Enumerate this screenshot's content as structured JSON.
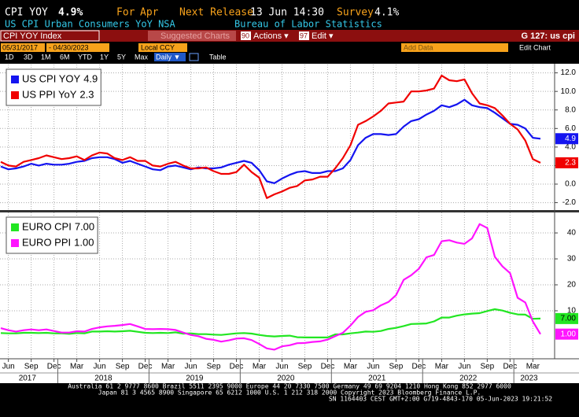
{
  "header": {
    "ticker": "CPI YOY",
    "value": "4.9%",
    "for_label": "For",
    "period": "Apr",
    "next_label": "Next Release",
    "next_date": "13 Jun 14:30",
    "survey_label": "Survey",
    "survey": "4.1%",
    "description": "US CPI Urban Consumers YoY NSA",
    "source": "Bureau of Labor Statistics"
  },
  "toolbar": {
    "index": "CPI YOY Index",
    "suggested": "Suggested Charts",
    "actions_num": "90",
    "actions": "Actions ▾",
    "edit_num": "97",
    "edit": "Edit ▾",
    "command": "G 127: us cpi"
  },
  "controls": {
    "start": "05/31/2017",
    "end": "- 04/30/2023",
    "ccy": "Local CCY",
    "ranges": [
      "1D",
      "3D",
      "1M",
      "6M",
      "YTD",
      "1Y",
      "5Y",
      "Max"
    ],
    "freq": "Daily ▼",
    "table": "Table",
    "add_data": "Add Data",
    "edit_chart": "Edit Chart"
  },
  "xaxis": {
    "ticks": [
      {
        "value": "2017-06",
        "label": "Jun"
      },
      {
        "value": "2017-09",
        "label": "Sep"
      },
      {
        "value": "2017-12",
        "label": "Dec"
      },
      {
        "value": "2018-03",
        "label": "Mar"
      },
      {
        "value": "2018-06",
        "label": "Jun"
      },
      {
        "value": "2018-09",
        "label": "Sep"
      },
      {
        "value": "2018-12",
        "label": "Dec"
      },
      {
        "value": "2019-03",
        "label": "Mar"
      },
      {
        "value": "2019-06",
        "label": "Jun"
      },
      {
        "value": "2019-09",
        "label": "Sep"
      },
      {
        "value": "2019-12",
        "label": "Dec"
      },
      {
        "value": "2020-03",
        "label": "Mar"
      },
      {
        "value": "2020-06",
        "label": "Jun"
      },
      {
        "value": "2020-09",
        "label": "Sep"
      },
      {
        "value": "2020-12",
        "label": "Dec"
      },
      {
        "value": "2021-03",
        "label": "Mar"
      },
      {
        "value": "2021-06",
        "label": "Jun"
      },
      {
        "value": "2021-09",
        "label": "Sep"
      },
      {
        "value": "2021-12",
        "label": "Dec"
      },
      {
        "value": "2022-03",
        "label": "Mar"
      },
      {
        "value": "2022-06",
        "label": "Jun"
      },
      {
        "value": "2022-09",
        "label": "Sep"
      },
      {
        "value": "2022-12",
        "label": "Dec"
      },
      {
        "value": "2023-03",
        "label": "Mar"
      }
    ],
    "years": [
      2017,
      2018,
      2019,
      2020,
      2021,
      2022,
      2023
    ]
  },
  "chart_data": [
    {
      "type": "line",
      "grid": true,
      "legend": "upper left",
      "x": [
        "2017-05",
        "2017-06",
        "2017-07",
        "2017-08",
        "2017-09",
        "2017-10",
        "2017-11",
        "2017-12",
        "2018-01",
        "2018-02",
        "2018-03",
        "2018-04",
        "2018-05",
        "2018-06",
        "2018-07",
        "2018-08",
        "2018-09",
        "2018-10",
        "2018-11",
        "2018-12",
        "2019-01",
        "2019-02",
        "2019-03",
        "2019-04",
        "2019-05",
        "2019-06",
        "2019-07",
        "2019-08",
        "2019-09",
        "2019-10",
        "2019-11",
        "2019-12",
        "2020-01",
        "2020-02",
        "2020-03",
        "2020-04",
        "2020-05",
        "2020-06",
        "2020-07",
        "2020-08",
        "2020-09",
        "2020-10",
        "2020-11",
        "2020-12",
        "2021-01",
        "2021-02",
        "2021-03",
        "2021-04",
        "2021-05",
        "2021-06",
        "2021-07",
        "2021-08",
        "2021-09",
        "2021-10",
        "2021-11",
        "2021-12",
        "2022-01",
        "2022-02",
        "2022-03",
        "2022-04",
        "2022-05",
        "2022-06",
        "2022-07",
        "2022-08",
        "2022-09",
        "2022-10",
        "2022-11",
        "2022-12",
        "2023-01",
        "2023-02",
        "2023-03",
        "2023-04"
      ],
      "ylim": [
        -2.8,
        12.9
      ],
      "yticks": [
        {
          "value": 12,
          "label": "12.0"
        },
        {
          "value": 10,
          "label": "10.0"
        },
        {
          "value": 8,
          "label": "8.0"
        },
        {
          "value": 6,
          "label": "6.0"
        },
        {
          "value": 4,
          "label": "4.0"
        },
        {
          "value": 2,
          "label": "2.0"
        },
        {
          "value": 0,
          "label": "0.0"
        },
        {
          "value": -2,
          "label": "-2.0"
        }
      ],
      "series": [
        {
          "name": "US CPI YOY",
          "color": "#1414f0",
          "values": [
            1.9,
            1.6,
            1.7,
            1.9,
            2.2,
            2.0,
            2.2,
            2.1,
            2.1,
            2.2,
            2.4,
            2.5,
            2.8,
            2.9,
            2.9,
            2.7,
            2.3,
            2.5,
            2.2,
            1.9,
            1.6,
            1.5,
            1.9,
            2.0,
            1.8,
            1.6,
            1.8,
            1.7,
            1.7,
            1.8,
            2.1,
            2.3,
            2.5,
            2.3,
            1.5,
            0.3,
            0.1,
            0.6,
            1.0,
            1.3,
            1.4,
            1.2,
            1.2,
            1.4,
            1.4,
            1.7,
            2.6,
            4.2,
            5.0,
            5.4,
            5.4,
            5.3,
            5.4,
            6.2,
            6.8,
            7.0,
            7.5,
            7.9,
            8.5,
            8.3,
            8.6,
            9.1,
            8.5,
            8.3,
            8.2,
            7.7,
            7.1,
            6.5,
            6.4,
            6.0,
            5.0,
            4.9
          ]
        },
        {
          "name": "US PPI YoY",
          "color": "#f00000",
          "values": [
            2.4,
            2.0,
            1.9,
            2.4,
            2.6,
            2.8,
            3.1,
            2.9,
            2.7,
            2.8,
            3.0,
            2.6,
            3.1,
            3.4,
            3.3,
            2.8,
            2.6,
            2.9,
            2.5,
            2.5,
            2.0,
            1.9,
            2.2,
            2.4,
            2.0,
            1.7,
            1.7,
            1.8,
            1.4,
            1.1,
            1.1,
            1.3,
            2.1,
            1.3,
            0.7,
            -1.5,
            -1.1,
            -0.8,
            -0.4,
            -0.2,
            0.4,
            0.5,
            0.8,
            0.8,
            1.7,
            2.8,
            4.2,
            6.4,
            6.8,
            7.3,
            7.9,
            8.7,
            8.8,
            8.9,
            10.0,
            10.0,
            10.1,
            10.3,
            11.7,
            11.2,
            11.1,
            11.3,
            9.8,
            8.7,
            8.5,
            8.2,
            7.4,
            6.5,
            5.9,
            4.7,
            2.7,
            2.3
          ]
        }
      ]
    },
    {
      "type": "line",
      "grid": true,
      "legend": "upper left",
      "x": [
        "2017-05",
        "2017-06",
        "2017-07",
        "2017-08",
        "2017-09",
        "2017-10",
        "2017-11",
        "2017-12",
        "2018-01",
        "2018-02",
        "2018-03",
        "2018-04",
        "2018-05",
        "2018-06",
        "2018-07",
        "2018-08",
        "2018-09",
        "2018-10",
        "2018-11",
        "2018-12",
        "2019-01",
        "2019-02",
        "2019-03",
        "2019-04",
        "2019-05",
        "2019-06",
        "2019-07",
        "2019-08",
        "2019-09",
        "2019-10",
        "2019-11",
        "2019-12",
        "2020-01",
        "2020-02",
        "2020-03",
        "2020-04",
        "2020-05",
        "2020-06",
        "2020-07",
        "2020-08",
        "2020-09",
        "2020-10",
        "2020-11",
        "2020-12",
        "2021-01",
        "2021-02",
        "2021-03",
        "2021-04",
        "2021-05",
        "2021-06",
        "2021-07",
        "2021-08",
        "2021-09",
        "2021-10",
        "2021-11",
        "2021-12",
        "2022-01",
        "2022-02",
        "2022-03",
        "2022-04",
        "2022-05",
        "2022-06",
        "2022-07",
        "2022-08",
        "2022-09",
        "2022-10",
        "2022-11",
        "2022-12",
        "2023-01",
        "2023-02",
        "2023-03",
        "2023-04"
      ],
      "ylim": [
        -8.2,
        47.9
      ],
      "yticks": [
        40,
        30,
        20,
        10
      ],
      "series": [
        {
          "name": "EURO CPI",
          "color": "#22e622",
          "last_label": "7.00",
          "values": [
            1.4,
            1.3,
            1.3,
            1.5,
            1.5,
            1.4,
            1.5,
            1.3,
            1.3,
            1.1,
            1.4,
            1.3,
            2.0,
            2.0,
            2.1,
            2.0,
            2.1,
            2.3,
            1.9,
            1.5,
            1.4,
            1.5,
            1.4,
            1.7,
            1.2,
            1.3,
            1.0,
            1.0,
            0.8,
            0.7,
            1.0,
            1.3,
            1.4,
            1.2,
            0.7,
            0.3,
            0.1,
            0.3,
            0.4,
            -0.2,
            -0.3,
            -0.3,
            -0.3,
            -0.3,
            0.9,
            0.9,
            1.3,
            1.6,
            2.0,
            1.9,
            2.2,
            3.0,
            3.4,
            4.1,
            4.9,
            5.0,
            5.1,
            5.9,
            7.4,
            7.4,
            8.1,
            8.6,
            8.9,
            9.1,
            9.9,
            10.6,
            10.1,
            9.2,
            8.6,
            8.5,
            6.9,
            7.0
          ]
        },
        {
          "name": "EURO PPI",
          "color": "#ff14ff",
          "last_label": "1.00",
          "values": [
            3.3,
            2.5,
            2.0,
            2.5,
            2.8,
            2.5,
            2.8,
            2.2,
            1.6,
            1.6,
            2.1,
            2.0,
            3.0,
            3.6,
            4.0,
            4.2,
            4.5,
            4.9,
            4.0,
            3.0,
            2.9,
            3.0,
            2.9,
            2.6,
            1.6,
            0.7,
            0.2,
            -0.8,
            -1.2,
            -1.9,
            -1.4,
            -0.7,
            -0.6,
            -1.3,
            -2.8,
            -4.5,
            -5.0,
            -3.7,
            -3.3,
            -2.5,
            -2.4,
            -2.0,
            -1.8,
            -1.1,
            0.2,
            1.5,
            4.3,
            7.6,
            9.6,
            10.2,
            12.1,
            13.4,
            16.0,
            21.9,
            23.7,
            26.2,
            30.6,
            31.5,
            36.8,
            37.2,
            36.3,
            35.8,
            37.9,
            43.4,
            41.9,
            30.8,
            27.1,
            24.5,
            15.0,
            13.2,
            5.9,
            1.0
          ]
        }
      ]
    }
  ],
  "footer": {
    "line1": "Australia 61 2 9777 8600 Brazil 5511 2395 9000 Europe 44 20 7330 7500 Germany 49 69 9204 1210 Hong Kong 852 2977 6000",
    "line2": "Japan 81 3 4565 8900       Singapore 65 6212 1000       U.S. 1 212 318 2000       Copyright 2023 Bloomberg Finance L.P.",
    "line3": "SN 1164403 CEST  GMT+2:00 G719-4843-170 05-Jun-2023 19:21:52"
  }
}
